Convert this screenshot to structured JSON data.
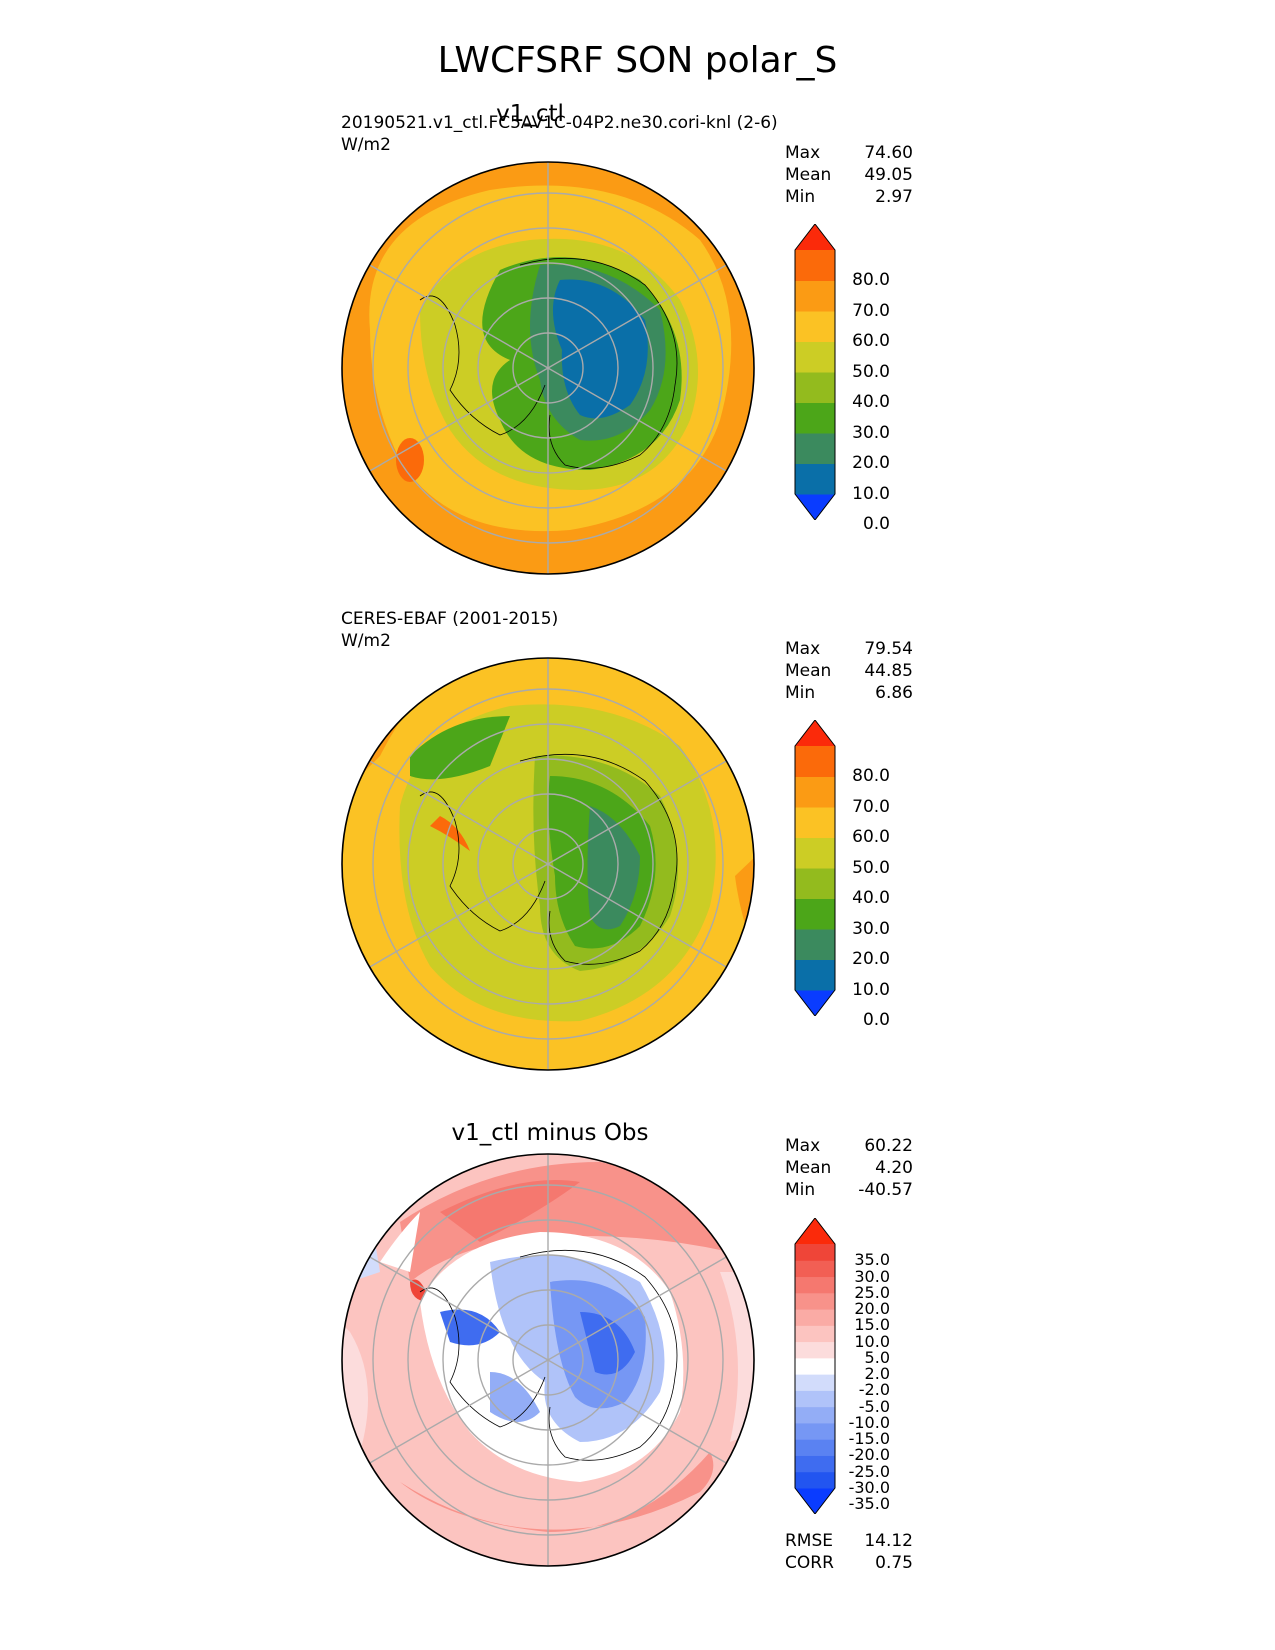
{
  "title": "LWCFSRF SON polar_S",
  "panels": [
    {
      "id": "test",
      "title": "v1_ctl",
      "label": "20190521.v1_ctl.FC5AV1C-04P2.ne30.cori-knl (2-6)",
      "units": "W/m2",
      "stats": {
        "max_label": "Max",
        "max": "74.60",
        "mean_label": "Mean",
        "mean": "49.05",
        "min_label": "Min",
        "min": "2.97"
      },
      "colorbar": {
        "ticks": [
          "80.0",
          "70.0",
          "60.0",
          "50.0",
          "40.0",
          "30.0",
          "20.0",
          "10.0",
          "0.0"
        ],
        "colors": [
          "#0a3cff",
          "#0a6fa8",
          "#3b8a5e",
          "#4ca619",
          "#93bb1e",
          "#cccd25",
          "#fbc224",
          "#fb9b14",
          "#fb6a0a",
          "#fb2a0a"
        ]
      }
    },
    {
      "id": "reference",
      "title": "",
      "label": "CERES-EBAF (2001-2015)",
      "units": "W/m2",
      "stats": {
        "max_label": "Max",
        "max": "79.54",
        "mean_label": "Mean",
        "mean": "44.85",
        "min_label": "Min",
        "min": "6.86"
      },
      "colorbar": {
        "ticks": [
          "80.0",
          "70.0",
          "60.0",
          "50.0",
          "40.0",
          "30.0",
          "20.0",
          "10.0",
          "0.0"
        ],
        "colors": [
          "#0a3cff",
          "#0a6fa8",
          "#3b8a5e",
          "#4ca619",
          "#93bb1e",
          "#cccd25",
          "#fbc224",
          "#fb9b14",
          "#fb6a0a",
          "#fb2a0a"
        ]
      }
    },
    {
      "id": "diff",
      "title": "v1_ctl minus Obs",
      "label": "",
      "units": "",
      "stats": {
        "max_label": "Max",
        "max": "60.22",
        "mean_label": "Mean",
        "mean": "4.20",
        "min_label": "Min",
        "min": "-40.57"
      },
      "colorbar": {
        "ticks": [
          "35.0",
          "30.0",
          "25.0",
          "20.0",
          "15.0",
          "10.0",
          "5.0",
          "2.0",
          "-2.0",
          "-5.0",
          "-10.0",
          "-15.0",
          "-20.0",
          "-25.0",
          "-30.0",
          "-35.0"
        ],
        "colors": [
          "#0a3cff",
          "#2255f0",
          "#3f6cf0",
          "#5a82f2",
          "#7697f4",
          "#93adf6",
          "#b0c3f9",
          "#d2dcfb",
          "#ffffff",
          "#fcdcdc",
          "#fcc4c0",
          "#faaba5",
          "#f8928a",
          "#f5786f",
          "#f25f54",
          "#ef4538",
          "#fb2a0a"
        ]
      },
      "rmse_label": "RMSE",
      "rmse": "14.12",
      "corr_label": "CORR",
      "corr": "0.75"
    }
  ]
}
